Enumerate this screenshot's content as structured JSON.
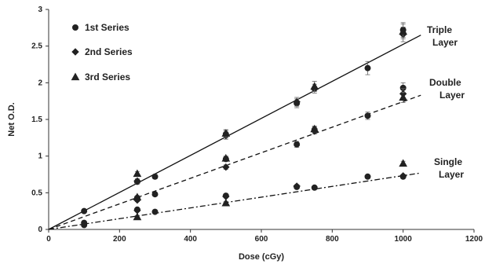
{
  "chart_data": {
    "type": "scatter",
    "xlabel": "Dose (cGy)",
    "ylabel": "Net O.D.",
    "xlim": [
      0,
      1200
    ],
    "ylim": [
      0,
      3
    ],
    "xticks": [
      0,
      200,
      400,
      600,
      800,
      1000,
      1200
    ],
    "yticks": [
      0,
      0.5,
      1,
      1.5,
      2,
      2.5,
      3
    ],
    "xtick_labels": [
      "0",
      "200",
      "400",
      "600",
      "800",
      "1000",
      "1200"
    ],
    "ytick_labels": [
      "0",
      "0.5",
      "1",
      "1.5",
      "2",
      "2.5",
      "3"
    ],
    "grid": false,
    "legend_placement": "top-left",
    "legend": [
      {
        "label": "1st Series",
        "marker": "circle"
      },
      {
        "label": "2nd Series",
        "marker": "diamond"
      },
      {
        "label": "3rd Series",
        "marker": "triangle"
      }
    ],
    "series": [
      {
        "name": "1st Series",
        "marker": "circle",
        "points": [
          {
            "x": 100,
            "y": 0.25,
            "err": 0.02
          },
          {
            "x": 250,
            "y": 0.65,
            "err": 0.03
          },
          {
            "x": 300,
            "y": 0.72,
            "err": 0.03
          },
          {
            "x": 500,
            "y": 1.3,
            "err": 0.05
          },
          {
            "x": 700,
            "y": 1.72,
            "err": 0.06
          },
          {
            "x": 750,
            "y": 1.92,
            "err": 0.06
          },
          {
            "x": 900,
            "y": 2.2,
            "err": 0.09
          },
          {
            "x": 1000,
            "y": 2.72,
            "err": 0.1
          },
          {
            "x": 100,
            "y": 0.06,
            "err": 0.02
          },
          {
            "x": 250,
            "y": 0.43,
            "err": 0.02
          },
          {
            "x": 300,
            "y": 0.48,
            "err": 0.02
          },
          {
            "x": 500,
            "y": 0.96,
            "err": 0.03
          },
          {
            "x": 700,
            "y": 1.16,
            "err": 0.04
          },
          {
            "x": 750,
            "y": 1.36,
            "err": 0.04
          },
          {
            "x": 900,
            "y": 1.55,
            "err": 0.05
          },
          {
            "x": 1000,
            "y": 1.93,
            "err": 0.07
          },
          {
            "x": 100,
            "y": 0.09,
            "err": 0.01
          },
          {
            "x": 250,
            "y": 0.27,
            "err": 0.02
          },
          {
            "x": 300,
            "y": 0.24,
            "err": 0.01
          },
          {
            "x": 500,
            "y": 0.46,
            "err": 0.02
          },
          {
            "x": 700,
            "y": 0.58,
            "err": 0.02
          },
          {
            "x": 750,
            "y": 0.57,
            "err": 0.02
          },
          {
            "x": 900,
            "y": 0.72,
            "err": 0.02
          },
          {
            "x": 1000,
            "y": 0.72,
            "err": 0.02
          }
        ]
      },
      {
        "name": "2nd Series",
        "marker": "diamond",
        "points": [
          {
            "x": 250,
            "y": 0.66,
            "err": 0.03
          },
          {
            "x": 500,
            "y": 1.28,
            "err": 0.05
          },
          {
            "x": 700,
            "y": 1.74,
            "err": 0.06
          },
          {
            "x": 1000,
            "y": 2.66,
            "err": 0.1
          },
          {
            "x": 250,
            "y": 0.4,
            "err": 0.02
          },
          {
            "x": 500,
            "y": 0.85,
            "err": 0.03
          },
          {
            "x": 750,
            "y": 1.34,
            "err": 0.04
          },
          {
            "x": 1000,
            "y": 1.85,
            "err": 0.07
          },
          {
            "x": 250,
            "y": 0.26,
            "err": 0.02
          },
          {
            "x": 500,
            "y": 0.45,
            "err": 0.02
          },
          {
            "x": 700,
            "y": 0.59,
            "err": 0.02
          },
          {
            "x": 1000,
            "y": 0.73,
            "err": 0.02
          }
        ]
      },
      {
        "name": "3rd Series",
        "marker": "triangle",
        "points": [
          {
            "x": 250,
            "y": 0.76,
            "err": 0.03
          },
          {
            "x": 500,
            "y": 1.31,
            "err": 0.05
          },
          {
            "x": 750,
            "y": 1.95,
            "err": 0.07
          },
          {
            "x": 1000,
            "y": 2.7,
            "err": 0.1
          },
          {
            "x": 250,
            "y": 0.44,
            "err": 0.02
          },
          {
            "x": 500,
            "y": 0.97,
            "err": 0.03
          },
          {
            "x": 750,
            "y": 1.37,
            "err": 0.04
          },
          {
            "x": 1000,
            "y": 1.8,
            "err": 0.07
          },
          {
            "x": 250,
            "y": 0.17,
            "err": 0.02
          },
          {
            "x": 500,
            "y": 0.36,
            "err": 0.02
          },
          {
            "x": 1000,
            "y": 0.9,
            "err": 0.03
          }
        ]
      }
    ],
    "fits": [
      {
        "name": "Triple Layer",
        "style": "solid",
        "x": [
          0,
          1050
        ],
        "y": [
          0,
          2.65
        ],
        "annotation": [
          "Triple",
          "Layer"
        ]
      },
      {
        "name": "Double Layer",
        "style": "dashed",
        "x": [
          0,
          1050
        ],
        "y": [
          0,
          1.83
        ],
        "annotation": [
          "Double",
          "Layer"
        ]
      },
      {
        "name": "Single Layer",
        "style": "dashdot",
        "x": [
          0,
          1050
        ],
        "y": [
          0,
          0.77
        ],
        "annotation": [
          "Single",
          "Layer"
        ]
      }
    ]
  }
}
